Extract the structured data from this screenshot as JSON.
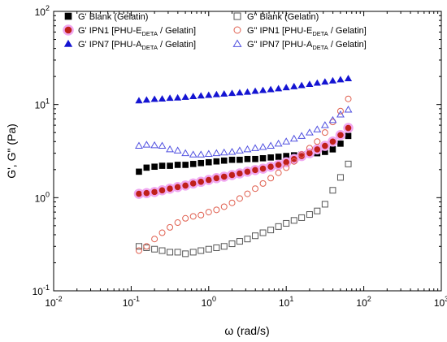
{
  "chart_data": {
    "type": "scatter",
    "xlabel": "ω (rad/s)",
    "ylabel": "G', G\" (Pa)",
    "xscale": "log",
    "yscale": "log",
    "xlim": [
      0.01,
      1000
    ],
    "ylim": [
      0.1,
      100
    ],
    "x_ticks": [
      {
        "value": 0.01,
        "base": "10",
        "exp": "-2"
      },
      {
        "value": 0.1,
        "base": "10",
        "exp": "-1"
      },
      {
        "value": 1,
        "base": "10",
        "exp": "0"
      },
      {
        "value": 10,
        "base": "10",
        "exp": "1"
      },
      {
        "value": 100,
        "base": "10",
        "exp": "2"
      },
      {
        "value": 1000,
        "base": "10",
        "exp": "3"
      }
    ],
    "y_ticks": [
      {
        "value": 0.1,
        "base": "10",
        "exp": "-1"
      },
      {
        "value": 1,
        "base": "10",
        "exp": "0"
      },
      {
        "value": 10,
        "base": "10",
        "exp": "1"
      },
      {
        "value": 100,
        "base": "10",
        "exp": "2"
      }
    ],
    "grid": false,
    "legend_placement": "top",
    "series": [
      {
        "id": "gp-blank",
        "name": "G' Blank (Gelatin)",
        "legend_col": 0,
        "legend_row": 0,
        "marker": "square",
        "filled": true,
        "color": "#000000",
        "x": [
          0.126,
          0.158,
          0.2,
          0.251,
          0.316,
          0.398,
          0.501,
          0.631,
          0.794,
          1.0,
          1.26,
          1.58,
          2.0,
          2.51,
          3.16,
          3.98,
          5.01,
          6.31,
          7.94,
          10.0,
          12.6,
          15.8,
          20.0,
          25.1,
          31.6,
          39.8,
          50.1,
          63.1
        ],
        "y": [
          1.9,
          2.1,
          2.15,
          2.2,
          2.2,
          2.25,
          2.25,
          2.3,
          2.35,
          2.4,
          2.45,
          2.5,
          2.55,
          2.55,
          2.6,
          2.6,
          2.65,
          2.7,
          2.75,
          2.8,
          2.85,
          2.9,
          2.95,
          3.0,
          3.1,
          3.3,
          3.8,
          4.6
        ]
      },
      {
        "id": "gp-ipn1",
        "name": "G' IPN1 [PHU-E",
        "name_sub": "DETA",
        "name_suffix": " / Gelatin]",
        "legend_col": 0,
        "legend_row": 1,
        "marker": "circle",
        "filled": true,
        "color": "#c0201a",
        "halo": "#f0a8f0",
        "x": [
          0.126,
          0.158,
          0.2,
          0.251,
          0.316,
          0.398,
          0.501,
          0.631,
          0.794,
          1.0,
          1.26,
          1.58,
          2.0,
          2.51,
          3.16,
          3.98,
          5.01,
          6.31,
          7.94,
          10.0,
          12.6,
          15.8,
          20.0,
          25.1,
          31.6,
          39.8,
          50.1,
          63.1
        ],
        "y": [
          1.1,
          1.12,
          1.15,
          1.2,
          1.25,
          1.3,
          1.35,
          1.42,
          1.48,
          1.55,
          1.62,
          1.68,
          1.75,
          1.82,
          1.9,
          1.98,
          2.05,
          2.15,
          2.25,
          2.4,
          2.6,
          2.8,
          3.0,
          3.3,
          3.6,
          4.0,
          4.7,
          5.6
        ]
      },
      {
        "id": "gp-ipn7",
        "name": "G' IPN7 [PHU-A",
        "name_sub": "DETA",
        "name_suffix": " / Gelatin]",
        "legend_col": 0,
        "legend_row": 2,
        "marker": "triangle",
        "filled": true,
        "color": "#1414d2",
        "x": [
          0.126,
          0.158,
          0.2,
          0.251,
          0.316,
          0.398,
          0.501,
          0.631,
          0.794,
          1.0,
          1.26,
          1.58,
          2.0,
          2.51,
          3.16,
          3.98,
          5.01,
          6.31,
          7.94,
          10.0,
          12.6,
          15.8,
          20.0,
          25.1,
          31.6,
          39.8,
          50.1,
          63.1
        ],
        "y": [
          11.0,
          11.2,
          11.4,
          11.5,
          11.7,
          11.8,
          12.0,
          12.2,
          12.4,
          12.6,
          12.8,
          13.0,
          13.2,
          13.4,
          13.6,
          13.9,
          14.2,
          14.5,
          14.8,
          15.2,
          15.6,
          16.0,
          16.5,
          17.0,
          17.5,
          18.0,
          18.5,
          19.0
        ]
      },
      {
        "id": "gpp-blank",
        "name": "G\" Blank (Gelatin)",
        "legend_col": 1,
        "legend_row": 0,
        "marker": "square",
        "filled": false,
        "color": "#555555",
        "x": [
          0.126,
          0.158,
          0.2,
          0.251,
          0.316,
          0.398,
          0.501,
          0.631,
          0.794,
          1.0,
          1.26,
          1.58,
          2.0,
          2.51,
          3.16,
          3.98,
          5.01,
          6.31,
          7.94,
          10.0,
          12.6,
          15.8,
          20.0,
          25.1,
          31.6,
          39.8,
          50.1,
          63.1
        ],
        "y": [
          0.3,
          0.29,
          0.28,
          0.27,
          0.26,
          0.26,
          0.25,
          0.26,
          0.27,
          0.28,
          0.29,
          0.3,
          0.32,
          0.34,
          0.36,
          0.39,
          0.42,
          0.45,
          0.49,
          0.53,
          0.57,
          0.61,
          0.66,
          0.72,
          0.85,
          1.2,
          1.65,
          2.3
        ]
      },
      {
        "id": "gpp-ipn1",
        "name": "G\" IPN1 [PHU-E",
        "name_sub": "DETA",
        "name_suffix": " / Gelatin]",
        "legend_col": 1,
        "legend_row": 1,
        "marker": "circle",
        "filled": false,
        "color": "#e06050",
        "x": [
          0.126,
          0.158,
          0.2,
          0.251,
          0.316,
          0.398,
          0.501,
          0.631,
          0.794,
          1.0,
          1.26,
          1.58,
          2.0,
          2.51,
          3.16,
          3.98,
          5.01,
          6.31,
          7.94,
          10.0,
          12.6,
          15.8,
          20.0,
          25.1,
          31.6,
          39.8,
          50.1,
          63.1
        ],
        "y": [
          0.27,
          0.3,
          0.36,
          0.42,
          0.48,
          0.54,
          0.6,
          0.63,
          0.65,
          0.7,
          0.74,
          0.8,
          0.88,
          0.98,
          1.1,
          1.25,
          1.42,
          1.62,
          1.85,
          2.1,
          2.45,
          2.9,
          3.4,
          4.0,
          5.0,
          6.5,
          8.5,
          11.5
        ]
      },
      {
        "id": "gpp-ipn7",
        "name": "G\" IPN7 [PHU-A",
        "name_sub": "DETA",
        "name_suffix": " / Gelatin]",
        "legend_col": 1,
        "legend_row": 2,
        "marker": "triangle",
        "filled": false,
        "color": "#5050e0",
        "x": [
          0.126,
          0.158,
          0.2,
          0.251,
          0.316,
          0.398,
          0.501,
          0.631,
          0.794,
          1.0,
          1.26,
          1.58,
          2.0,
          2.51,
          3.16,
          3.98,
          5.01,
          6.31,
          7.94,
          10.0,
          12.6,
          15.8,
          20.0,
          25.1,
          31.6,
          39.8,
          50.1,
          63.1
        ],
        "y": [
          3.6,
          3.7,
          3.65,
          3.6,
          3.3,
          3.2,
          3.0,
          2.9,
          2.9,
          2.95,
          3.0,
          3.05,
          3.1,
          3.2,
          3.3,
          3.4,
          3.5,
          3.6,
          3.8,
          4.0,
          4.3,
          4.6,
          5.0,
          5.4,
          6.0,
          6.8,
          7.8,
          8.8
        ]
      }
    ]
  }
}
